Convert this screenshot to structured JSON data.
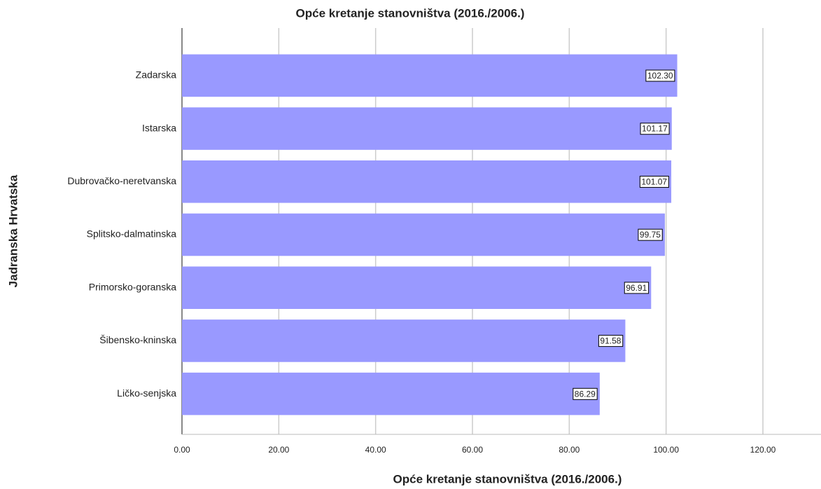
{
  "chart_data": {
    "type": "bar",
    "orientation": "horizontal",
    "title": "Opće kretanje stanovništva (2016./2006.)",
    "x_label": "Opće kretanje stanovništva (2016./2006.)",
    "y_label": "Jadranska Hrvatska",
    "categories": [
      "Zadarska",
      "Istarska",
      "Dubrovačko-neretvanska",
      "Splitsko-dalmatinska",
      "Primorsko-goranska",
      "Šibensko-kninska",
      "Ličko-senjska"
    ],
    "values": [
      102.3,
      101.17,
      101.07,
      99.75,
      96.91,
      91.58,
      86.29
    ],
    "value_labels": [
      "102.30",
      "101.17",
      "101.07",
      "99.75",
      "96.91",
      "91.58",
      "86.29"
    ],
    "color": "#9999ff",
    "xlim": [
      0,
      132
    ],
    "xticks": [
      {
        "value": 0,
        "label": "0.00"
      },
      {
        "value": 20,
        "label": "20.00"
      },
      {
        "value": 40,
        "label": "40.00"
      },
      {
        "value": 60,
        "label": "60.00"
      },
      {
        "value": 80,
        "label": "80.00"
      },
      {
        "value": 100,
        "label": "100.00"
      },
      {
        "value": 120,
        "label": "120.00"
      }
    ],
    "grid": true
  }
}
